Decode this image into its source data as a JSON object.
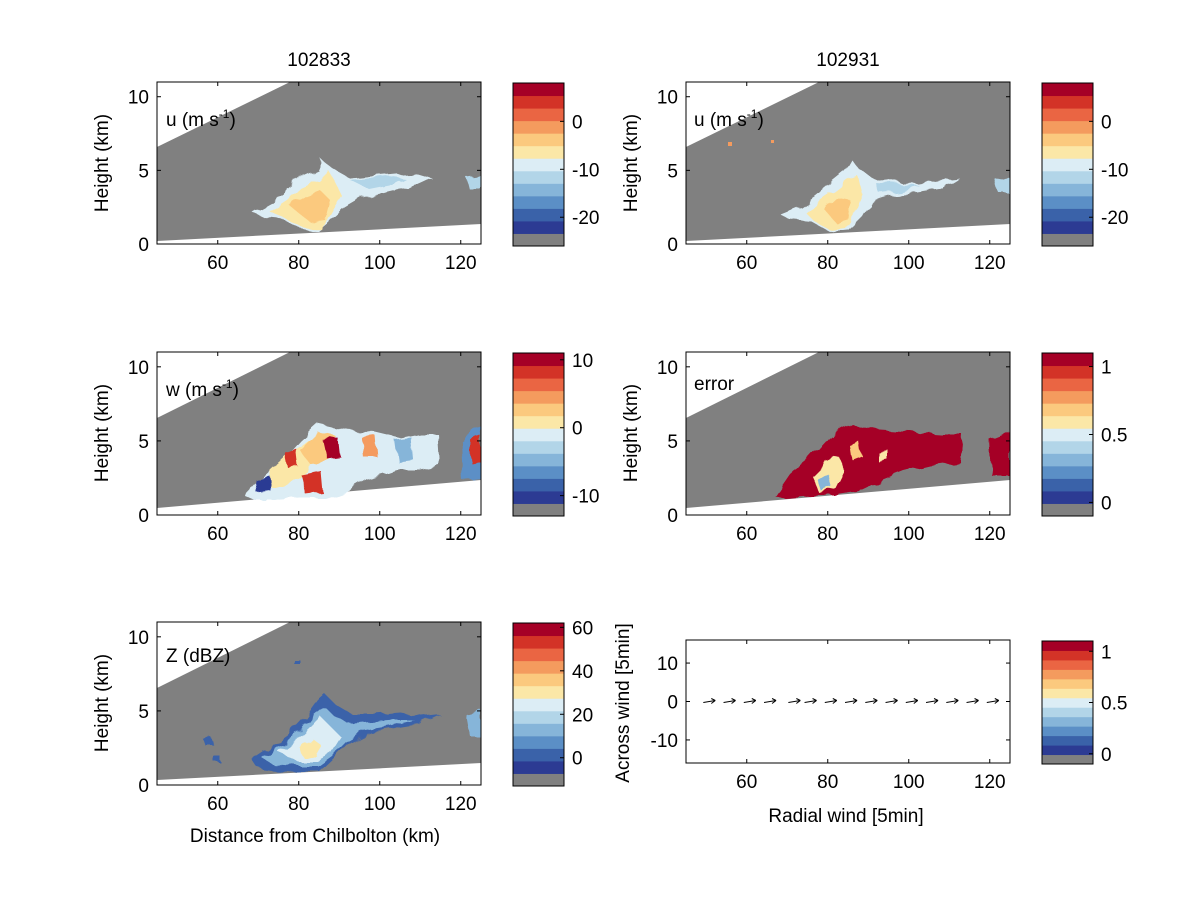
{
  "figure": {
    "titles": [
      "102833",
      "102931"
    ],
    "x_ticks": [
      60,
      80,
      100,
      120
    ],
    "xlim": [
      45,
      125
    ]
  },
  "colors": {
    "background_gray": "#808080",
    "colormap": [
      "#2c3b93",
      "#3a62a9",
      "#5b8fc6",
      "#86b5d9",
      "#b2d5e8",
      "#dcedf5",
      "#fbe7a7",
      "#fbc97e",
      "#f49b5e",
      "#ea6543",
      "#d33327",
      "#a50026"
    ]
  },
  "chart_data": [
    {
      "type": "heatmap",
      "id": "u1",
      "label": "u (m s-1)",
      "label_main": "u (m s",
      "label_sup": "-1",
      "label_end": ")",
      "ylabel": "Height (km)",
      "xlabel": "",
      "xlim": [
        45,
        125
      ],
      "ylim": [
        0,
        11
      ],
      "y_ticks": [
        0,
        5,
        10
      ],
      "colorbar": {
        "ticks": [
          0,
          -10,
          -20
        ],
        "range": [
          -26,
          8
        ]
      }
    },
    {
      "type": "heatmap",
      "id": "u2",
      "label": "u (m s-1)",
      "label_main": "u (m s",
      "label_sup": "-1",
      "label_end": ")",
      "ylabel": "Height (km)",
      "xlabel": "",
      "xlim": [
        45,
        125
      ],
      "ylim": [
        0,
        11
      ],
      "y_ticks": [
        0,
        5,
        10
      ],
      "colorbar": {
        "ticks": [
          0,
          -10,
          -20
        ],
        "range": [
          -26,
          8
        ]
      }
    },
    {
      "type": "heatmap",
      "id": "w",
      "label": "w (m s-1)",
      "label_main": "w (m s",
      "label_sup": "-1",
      "label_end": ")",
      "ylabel": "Height (km)",
      "xlabel": "",
      "xlim": [
        45,
        125
      ],
      "ylim": [
        0,
        11
      ],
      "y_ticks": [
        0,
        5,
        10
      ],
      "colorbar": {
        "ticks": [
          10,
          0,
          -10
        ],
        "range": [
          -13,
          11
        ]
      }
    },
    {
      "type": "heatmap",
      "id": "error",
      "label": "error",
      "label_main": "error",
      "label_sup": "",
      "label_end": "",
      "ylabel": "Height (km)",
      "xlabel": "",
      "xlim": [
        45,
        125
      ],
      "ylim": [
        0,
        11
      ],
      "y_ticks": [
        0,
        5,
        10
      ],
      "colorbar": {
        "ticks": [
          1,
          0.5,
          0
        ],
        "range": [
          -0.1,
          1.1
        ]
      }
    },
    {
      "type": "heatmap",
      "id": "z",
      "label": "Z (dBZ)",
      "label_main": "Z (dBZ)",
      "label_sup": "",
      "label_end": "",
      "ylabel": "Height (km)",
      "xlabel": "Distance from Chilbolton (km)",
      "xlim": [
        45,
        125
      ],
      "ylim": [
        0,
        11
      ],
      "y_ticks": [
        0,
        5,
        10
      ],
      "colorbar": {
        "ticks": [
          60,
          40,
          20,
          0
        ],
        "range": [
          -13,
          62
        ]
      }
    },
    {
      "type": "scatter",
      "id": "quiver",
      "label": "",
      "ylabel": "Across wind [5min]",
      "xlabel": "Radial wind [5min]",
      "xlim": [
        45,
        125
      ],
      "ylim": [
        -16,
        16
      ],
      "y_ticks": [
        10,
        0,
        -10
      ],
      "x": [
        51,
        56,
        61,
        66,
        72,
        76,
        81,
        86,
        91,
        96,
        101,
        106,
        111,
        116,
        121
      ],
      "y": [
        0,
        0,
        0,
        0,
        0,
        0,
        0,
        0,
        0,
        0,
        0,
        0,
        0,
        0,
        0
      ],
      "colorbar": {
        "ticks": [
          1,
          0.5,
          0
        ],
        "range": [
          -0.1,
          1.1
        ]
      }
    }
  ]
}
